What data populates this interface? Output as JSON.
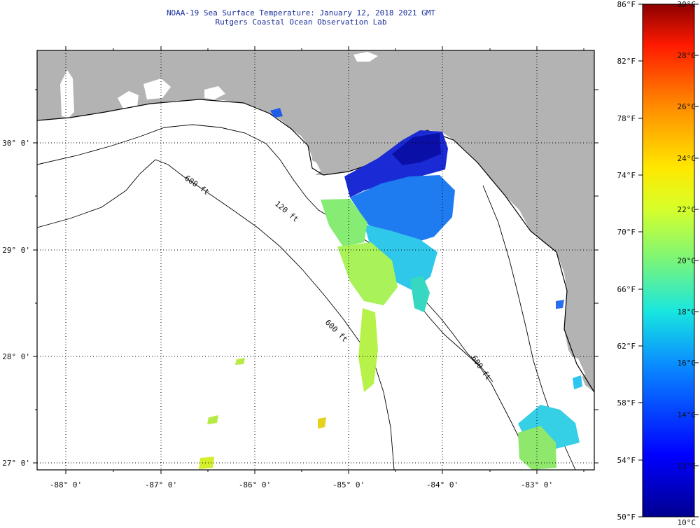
{
  "header": {
    "title": "NOAA-19 Sea Surface Temperature:  January 12, 2018 2021 GMT",
    "subtitle": "Rutgers Coastal Ocean Observation Lab"
  },
  "map": {
    "lon_labels": [
      "-88° 0'",
      "-87° 0'",
      "-86° 0'",
      "-85° 0'",
      "-84° 0'",
      "-83° 0'"
    ],
    "lat_labels": [
      "30° 0'",
      "29° 0'",
      "28° 0'",
      "27° 0'"
    ],
    "contour_labels": [
      "120 ft",
      "600 ft",
      "600 ft",
      "600 ft"
    ],
    "colors": {
      "land": "#b3b3b3",
      "ocean_no_data": "#ffffff",
      "title": "#1a2f9a"
    }
  },
  "colorbar": {
    "fahrenheit_labels": [
      "86°F",
      "82°F",
      "78°F",
      "74°F",
      "70°F",
      "66°F",
      "62°F",
      "58°F",
      "54°F",
      "50°F"
    ],
    "celsius_labels": [
      "30°C",
      "28°C",
      "26°C",
      "24°C",
      "22°C",
      "20°C",
      "18°C",
      "16°C",
      "14°C",
      "12°C",
      "10°C"
    ]
  }
}
